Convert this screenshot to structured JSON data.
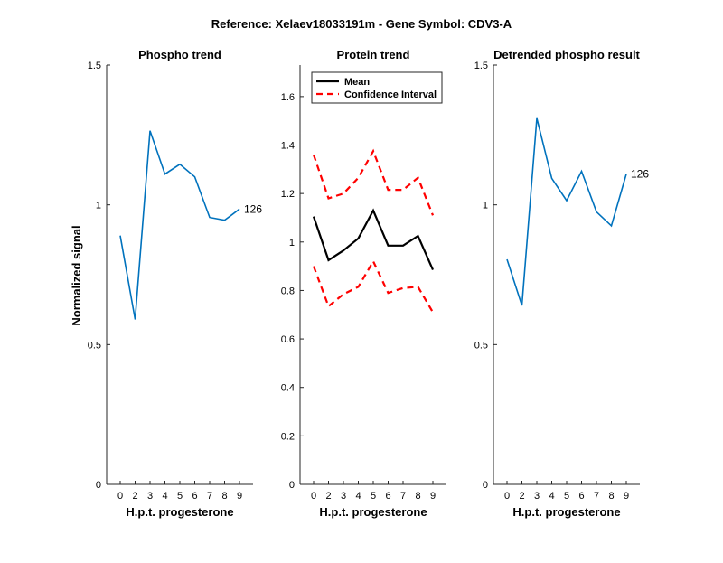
{
  "figure": {
    "suptitle": "Reference:  Xelaev18033191m - Gene Symbol:  CDV3-A"
  },
  "colors": {
    "phospho_line": "#0072BD",
    "mean_line": "#000000",
    "ci_line": "#FF0000",
    "axis": "#262626"
  },
  "chart_data": [
    {
      "type": "line",
      "title": "Phospho trend",
      "xlabel": "H.p.t. progesterone",
      "ylabel": "Normalized signal",
      "categories": [
        "0",
        "2",
        "3",
        "4",
        "5",
        "6",
        "7",
        "8",
        "9"
      ],
      "ylim": [
        0,
        1.5
      ],
      "yticks": [
        0,
        0.5,
        1,
        1.5
      ],
      "ytick_labels": [
        "0",
        "0.5",
        "1",
        "1.5"
      ],
      "series": [
        {
          "values": [
            0.89,
            0.59,
            1.265,
            1.11,
            1.145,
            1.1,
            0.955,
            0.945,
            0.985
          ]
        }
      ],
      "annotations": [
        {
          "text": "126",
          "at_category": "9"
        }
      ],
      "grid": false
    },
    {
      "type": "line",
      "title": "Protein trend",
      "xlabel": "H.p.t. progesterone",
      "ylabel": "",
      "categories": [
        "0",
        "2",
        "3",
        "4",
        "5",
        "6",
        "7",
        "8",
        "9"
      ],
      "ylim": [
        0,
        1.73
      ],
      "yticks": [
        0,
        0.2,
        0.4,
        0.6,
        0.8,
        1,
        1.2,
        1.4,
        1.6
      ],
      "ytick_labels": [
        "0",
        "0.2",
        "0.4",
        "0.6",
        "0.8",
        "1",
        "1.2",
        "1.4",
        "1.6"
      ],
      "series": [
        {
          "name": "Mean",
          "values": [
            1.105,
            0.925,
            0.965,
            1.015,
            1.13,
            0.985,
            0.985,
            1.025,
            0.885
          ]
        },
        {
          "name": "Confidence Interval",
          "values": [
            1.36,
            1.18,
            1.2,
            1.265,
            1.375,
            1.215,
            1.215,
            1.265,
            1.11
          ]
        },
        {
          "values": [
            0.9,
            0.735,
            0.785,
            0.815,
            0.92,
            0.79,
            0.81,
            0.815,
            0.71
          ]
        }
      ],
      "legend": {
        "position": "top-left",
        "entries": [
          "Mean",
          "Confidence Interval"
        ]
      },
      "grid": false
    },
    {
      "type": "line",
      "title": "Detrended phospho result",
      "xlabel": "H.p.t. progesterone",
      "ylabel": "",
      "categories": [
        "0",
        "2",
        "3",
        "4",
        "5",
        "6",
        "7",
        "8",
        "9"
      ],
      "ylim": [
        0,
        1.5
      ],
      "yticks": [
        0,
        0.5,
        1,
        1.5
      ],
      "ytick_labels": [
        "0",
        "0.5",
        "1",
        "1.5"
      ],
      "series": [
        {
          "values": [
            0.805,
            0.64,
            1.31,
            1.095,
            1.015,
            1.12,
            0.975,
            0.925,
            1.11
          ]
        }
      ],
      "annotations": [
        {
          "text": "126",
          "at_category": "9"
        }
      ],
      "grid": false
    }
  ]
}
